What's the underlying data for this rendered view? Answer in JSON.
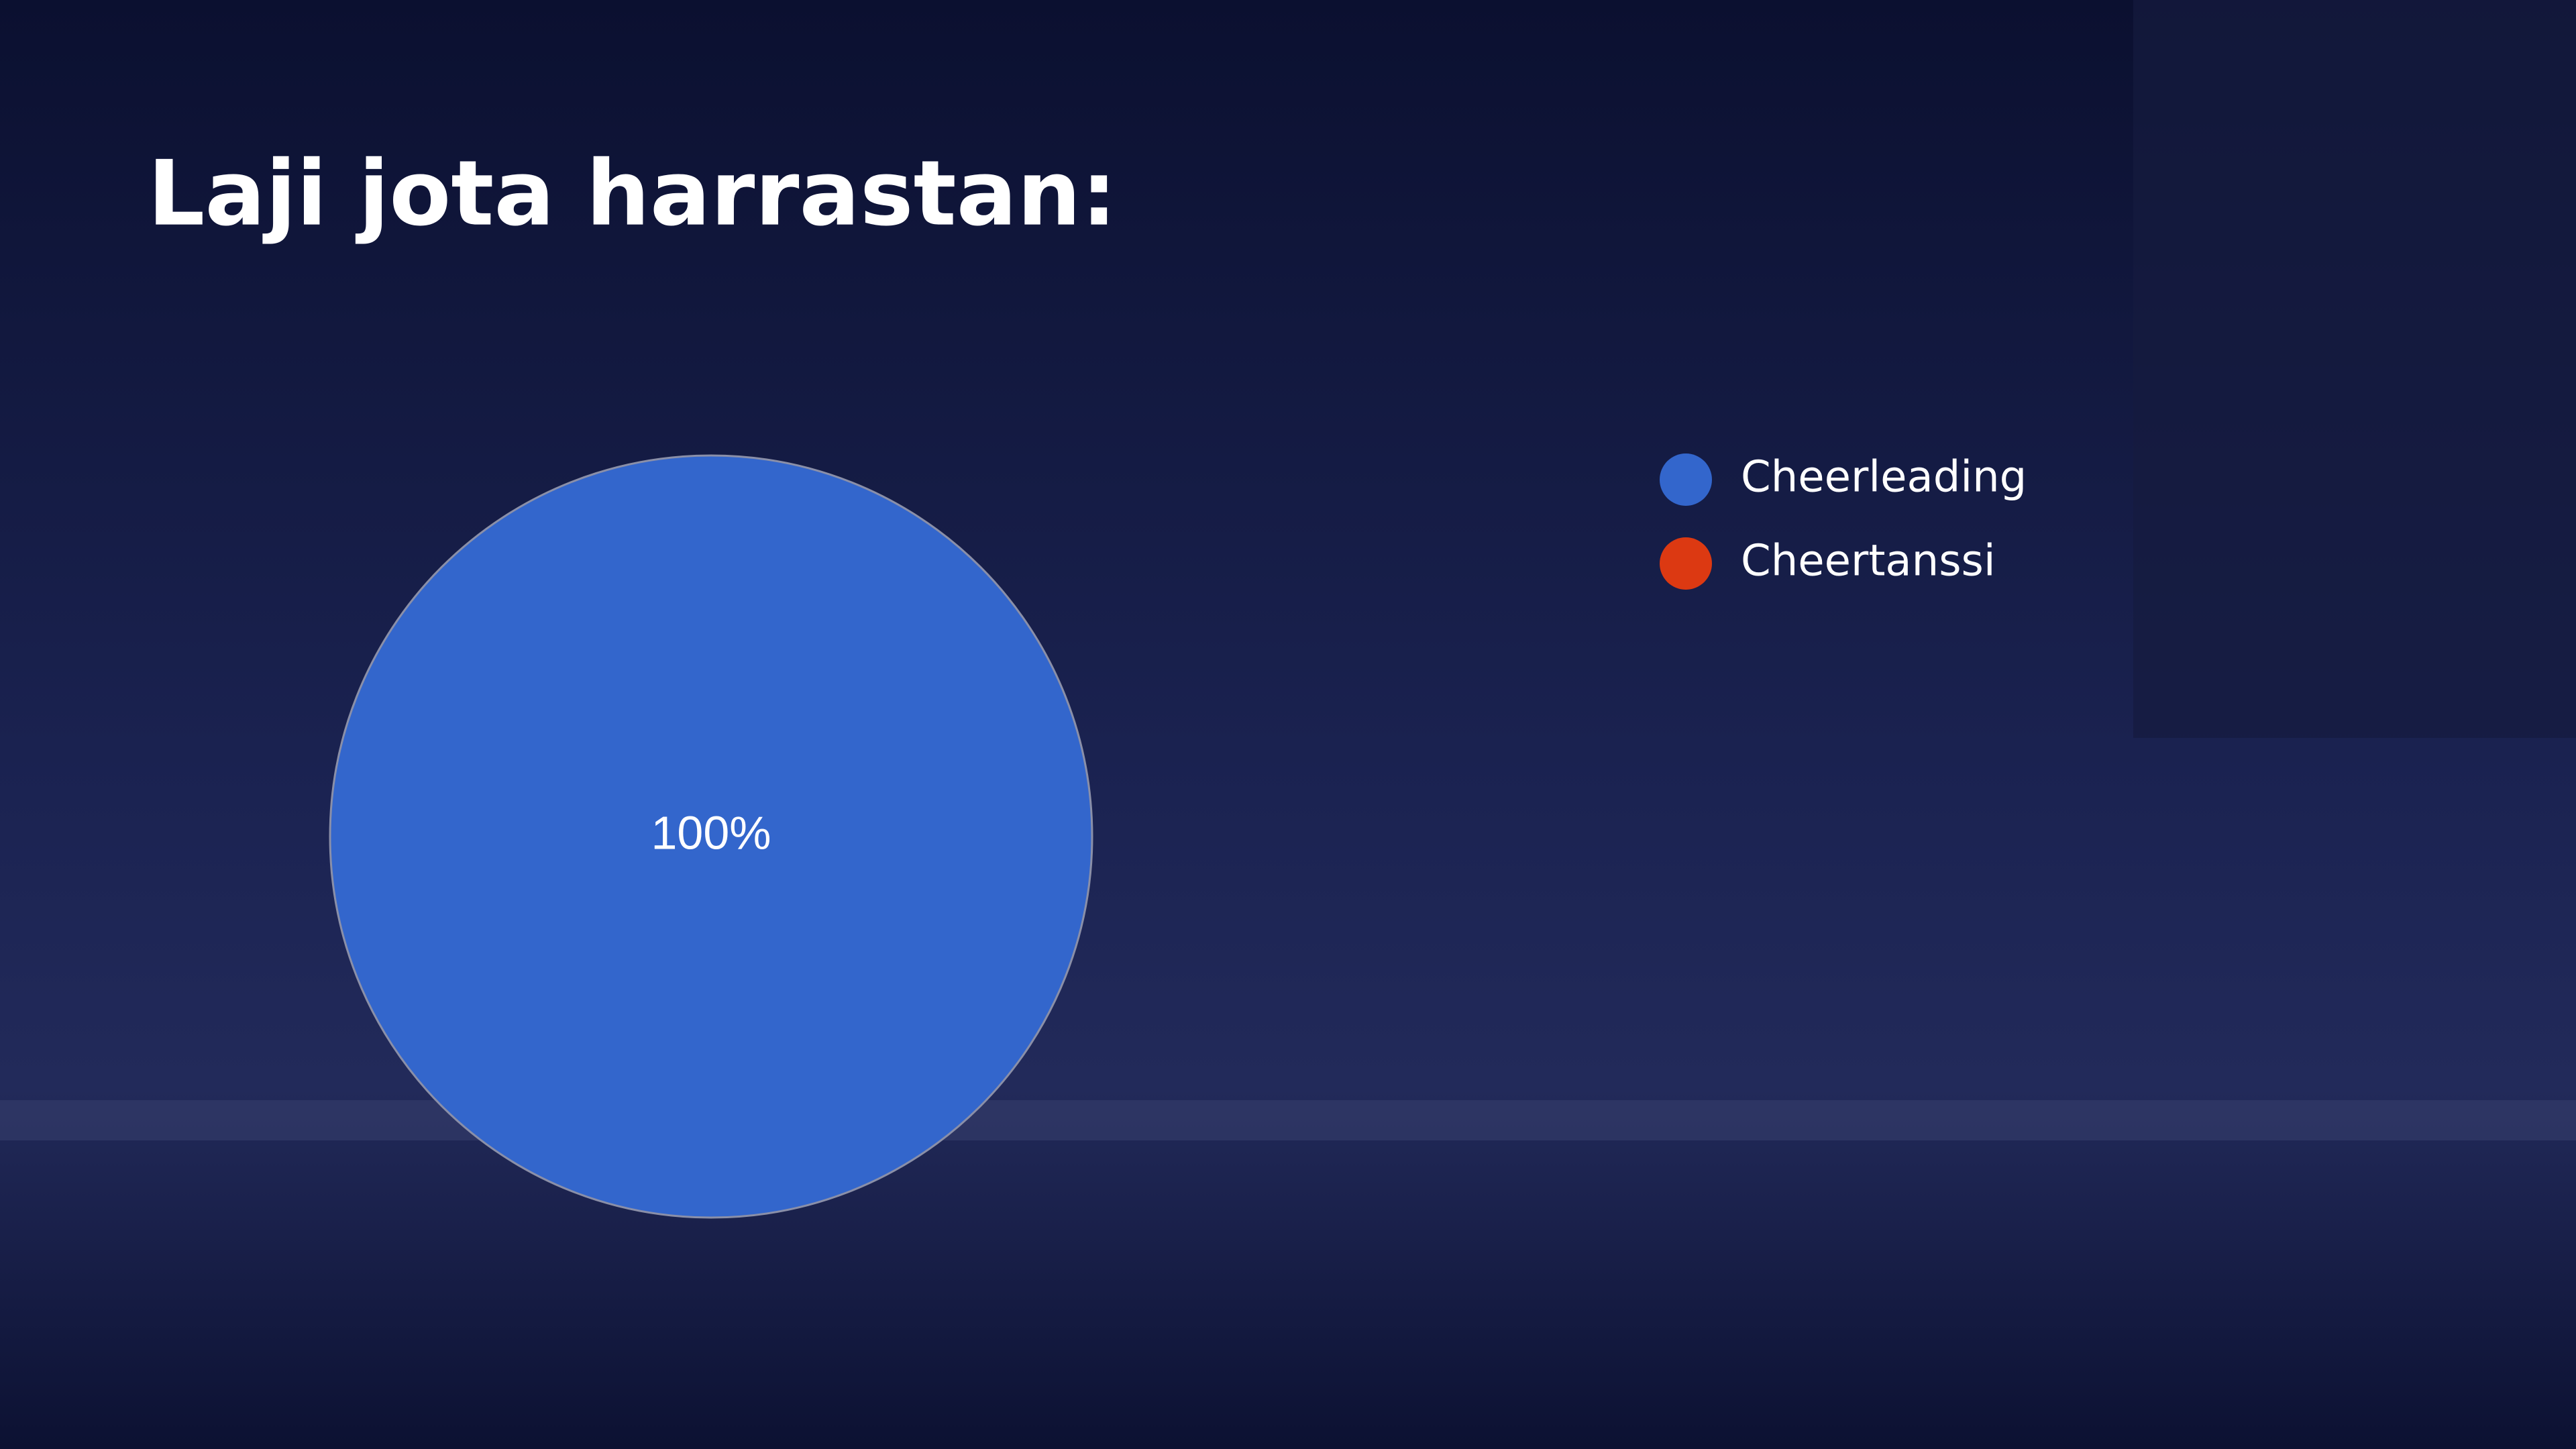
{
  "chart_data": {
    "type": "pie",
    "title": "Laji jota harrastan:",
    "categories": [
      "Cheerleading",
      "Cheertanssi"
    ],
    "values": [
      100,
      0
    ],
    "value_labels": [
      "100%",
      null
    ],
    "colors": [
      "#3366cc",
      "#dc3912"
    ],
    "legend": "right"
  }
}
